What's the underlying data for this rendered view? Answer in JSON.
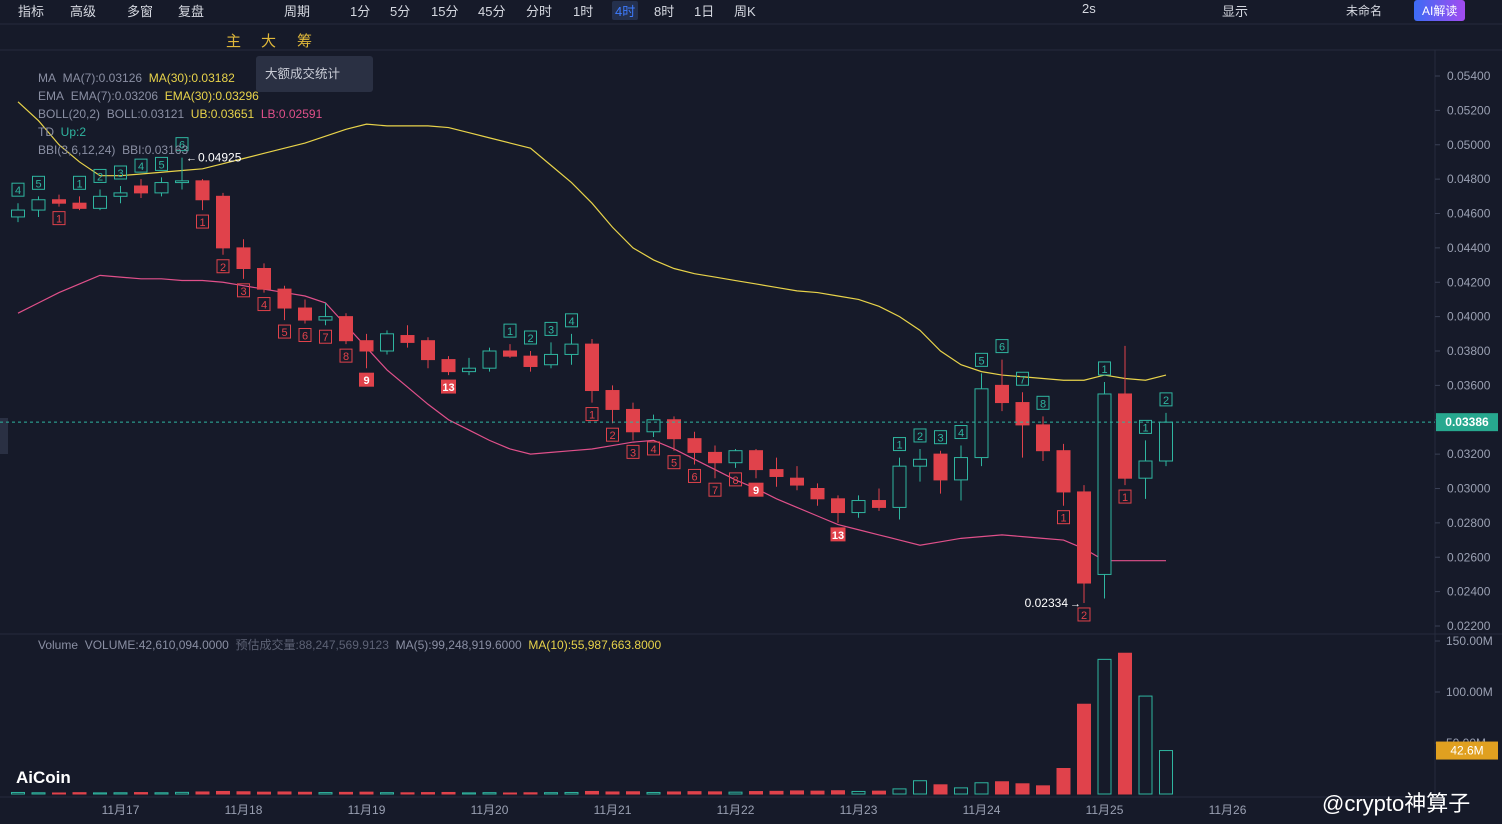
{
  "toolbar": {
    "left": [
      "指标",
      "高级",
      "多窗",
      "复盘"
    ],
    "period": "周期",
    "intervals": [
      "1分",
      "5分",
      "15分",
      "45分",
      "分时",
      "1时",
      "4时",
      "8时",
      "1日",
      "周K"
    ],
    "active_interval": "4时",
    "refresh": "2s",
    "display": "显示",
    "layout_name": "未命名",
    "ai": "AI解读",
    "chips": [
      "主",
      "大",
      "筹"
    ]
  },
  "tooltip": "大额成交统计",
  "legend": {
    "ma": [
      "MA",
      "MA(7):0.03126",
      "MA(30):0.03182"
    ],
    "ema": [
      "EMA",
      "EMA(7):0.03206",
      "EMA(30):0.03296"
    ],
    "boll": [
      "BOLL(20,2)",
      "BOLL:0.03121",
      "UB:0.03651",
      "LB:0.02591"
    ],
    "td": [
      "TD",
      "Up:2"
    ],
    "bbi": [
      "BBI(3,6,12,24)",
      "BBI:0.03163"
    ],
    "volume": [
      "Volume",
      "VOLUME:42,610,094.0000",
      "预估成交量:88,247,569.9123",
      "MA(5):99,248,919.6000",
      "MA(10):55,987,663.8000"
    ]
  },
  "watermark": {
    "logo": "AiCoin",
    "author": "@crypto神算子"
  },
  "chart_data": {
    "type": "candlestick",
    "dates": [
      "11月17",
      "11月18",
      "11月19",
      "11月20",
      "11月21",
      "11月22",
      "11月23",
      "11月24",
      "11月25",
      "11月26"
    ],
    "open": [
      0.0458,
      0.0462,
      0.0468,
      0.0466,
      0.0463,
      0.047,
      0.0476,
      0.0472,
      0.0478,
      0.0479,
      0.047,
      0.044,
      0.0428,
      0.0416,
      0.0405,
      0.0398,
      0.04,
      0.0386,
      0.038,
      0.0389,
      0.0386,
      0.0375,
      0.0368,
      0.037,
      0.038,
      0.0377,
      0.0372,
      0.0378,
      0.0384,
      0.0357,
      0.0346,
      0.0333,
      0.034,
      0.0329,
      0.0321,
      0.0315,
      0.0322,
      0.0311,
      0.0306,
      0.03,
      0.0294,
      0.0286,
      0.0293,
      0.0289,
      0.0313,
      0.032,
      0.0305,
      0.0318,
      0.036,
      0.035,
      0.0337,
      0.0322,
      0.0298,
      0.025,
      0.0355,
      0.0306,
      0.0316
    ],
    "high": [
      0.0466,
      0.047,
      0.0471,
      0.047,
      0.0474,
      0.0476,
      0.048,
      0.0481,
      0.04925,
      0.048,
      0.0472,
      0.0445,
      0.0431,
      0.0418,
      0.041,
      0.0408,
      0.0402,
      0.039,
      0.0392,
      0.0395,
      0.0388,
      0.0377,
      0.0376,
      0.0382,
      0.0384,
      0.038,
      0.0385,
      0.039,
      0.0387,
      0.036,
      0.035,
      0.0343,
      0.0342,
      0.0333,
      0.0325,
      0.0323,
      0.0323,
      0.0318,
      0.0313,
      0.0303,
      0.0296,
      0.0296,
      0.03,
      0.0318,
      0.0323,
      0.0322,
      0.0325,
      0.0367,
      0.0375,
      0.0356,
      0.0342,
      0.0326,
      0.0302,
      0.0362,
      0.0383,
      0.0328,
      0.0344
    ],
    "low": [
      0.0455,
      0.0458,
      0.0464,
      0.0462,
      0.0462,
      0.0466,
      0.0469,
      0.047,
      0.0474,
      0.0462,
      0.0436,
      0.0422,
      0.0414,
      0.0398,
      0.0396,
      0.0395,
      0.0384,
      0.037,
      0.0378,
      0.0382,
      0.037,
      0.0366,
      0.0366,
      0.0368,
      0.0376,
      0.0368,
      0.037,
      0.0372,
      0.035,
      0.0338,
      0.0328,
      0.033,
      0.0322,
      0.0314,
      0.0306,
      0.0312,
      0.0306,
      0.0301,
      0.0299,
      0.029,
      0.028,
      0.0283,
      0.0287,
      0.0282,
      0.0304,
      0.0297,
      0.0293,
      0.0313,
      0.0345,
      0.0318,
      0.0316,
      0.029,
      0.02334,
      0.0236,
      0.0302,
      0.0294,
      0.0313
    ],
    "close": [
      0.0462,
      0.0468,
      0.0466,
      0.0463,
      0.047,
      0.0472,
      0.0472,
      0.0478,
      0.0479,
      0.0468,
      0.044,
      0.0428,
      0.0416,
      0.0405,
      0.0398,
      0.04,
      0.0386,
      0.038,
      0.039,
      0.0385,
      0.0375,
      0.0368,
      0.037,
      0.038,
      0.0377,
      0.0371,
      0.0378,
      0.0384,
      0.0357,
      0.0346,
      0.0333,
      0.034,
      0.0329,
      0.0321,
      0.0315,
      0.0322,
      0.0311,
      0.0307,
      0.0302,
      0.0294,
      0.0286,
      0.0293,
      0.0289,
      0.0313,
      0.0317,
      0.0305,
      0.0318,
      0.0358,
      0.035,
      0.0337,
      0.0322,
      0.0298,
      0.0245,
      0.0355,
      0.0306,
      0.0316,
      0.03386
    ],
    "volume": [
      1.5,
      1.2,
      1.0,
      1.3,
      1.1,
      1.2,
      1.4,
      1.2,
      1.6,
      2.0,
      2.5,
      2.2,
      1.8,
      2.0,
      1.7,
      1.4,
      1.6,
      1.8,
      1.3,
      1.2,
      1.4,
      1.5,
      1.1,
      1.3,
      1.0,
      1.2,
      1.3,
      1.5,
      2.5,
      2.0,
      2.2,
      1.5,
      2.0,
      2.3,
      2.1,
      1.8,
      2.4,
      2.6,
      3.0,
      2.8,
      3.2,
      2.5,
      2.8,
      5.0,
      13.0,
      9.0,
      6.0,
      11.0,
      12.0,
      10.0,
      8.0,
      25.0,
      88.0,
      132.0,
      138.0,
      96.0,
      42.6
    ],
    "lines": [
      {
        "name": "UB",
        "color": "#e8d34a",
        "values": [
          0.0525,
          0.0514,
          0.05,
          0.049,
          0.0482,
          0.0482,
          0.0483,
          0.0484,
          0.0485,
          0.0486,
          0.0489,
          0.0492,
          0.0495,
          0.0498,
          0.0501,
          0.0505,
          0.0509,
          0.0512,
          0.0511,
          0.0511,
          0.0511,
          0.051,
          0.0507,
          0.0504,
          0.0501,
          0.0498,
          0.0488,
          0.0478,
          0.0466,
          0.0452,
          0.044,
          0.0433,
          0.0428,
          0.0425,
          0.0423,
          0.0421,
          0.0419,
          0.0417,
          0.0415,
          0.0414,
          0.0412,
          0.041,
          0.0406,
          0.04,
          0.0392,
          0.038,
          0.0372,
          0.0368,
          0.0366,
          0.0365,
          0.0364,
          0.0363,
          0.0363,
          0.0366,
          0.0364,
          0.0363,
          0.0366
        ]
      },
      {
        "name": "LB",
        "color": "#e0508a",
        "values": [
          0.0402,
          0.0408,
          0.0414,
          0.0419,
          0.0424,
          0.0423,
          0.0422,
          0.0422,
          0.0421,
          0.0421,
          0.042,
          0.0418,
          0.0416,
          0.0414,
          0.0412,
          0.0408,
          0.0395,
          0.0382,
          0.0369,
          0.0359,
          0.0349,
          0.034,
          0.0334,
          0.0328,
          0.0323,
          0.032,
          0.0321,
          0.0322,
          0.0323,
          0.0325,
          0.0327,
          0.0328,
          0.0323,
          0.0317,
          0.0311,
          0.0305,
          0.03,
          0.0294,
          0.0289,
          0.0284,
          0.0279,
          0.0276,
          0.0273,
          0.027,
          0.0267,
          0.0269,
          0.0271,
          0.0272,
          0.0273,
          0.0272,
          0.0271,
          0.027,
          0.0265,
          0.0258,
          0.0258,
          0.0258,
          0.0258
        ]
      }
    ],
    "td_above": [
      "4",
      "5",
      null,
      "1",
      "2",
      "3",
      "4",
      "5",
      "6",
      null,
      null,
      null,
      null,
      null,
      null,
      null,
      null,
      null,
      null,
      null,
      null,
      null,
      null,
      null,
      "1",
      "2",
      "3",
      "4",
      null,
      null,
      null,
      null,
      null,
      null,
      null,
      null,
      null,
      null,
      null,
      null,
      null,
      null,
      null,
      "1",
      "2",
      "3",
      "4",
      "5",
      "6",
      "7",
      "8",
      null,
      null,
      "1",
      null,
      "1",
      "2"
    ],
    "td_below": [
      null,
      null,
      "1",
      null,
      null,
      null,
      null,
      null,
      null,
      "1",
      "2",
      "3",
      "4",
      "5",
      "6",
      "7",
      "8",
      "9",
      null,
      null,
      null,
      "13",
      null,
      null,
      null,
      null,
      null,
      null,
      "1",
      "2",
      "3",
      "4",
      "5",
      "6",
      "7",
      "8",
      "9",
      null,
      null,
      null,
      "13",
      null,
      null,
      null,
      null,
      null,
      null,
      null,
      null,
      null,
      null,
      "1",
      "2",
      null,
      "1",
      null,
      null
    ],
    "high_label": 0.04925,
    "low_label": 0.02334,
    "ylim": [
      0.022,
      0.054
    ],
    "yticks": [
      {
        "value": 0.054,
        "label": "0.05400"
      },
      {
        "value": 0.052,
        "label": "0.05200"
      },
      {
        "value": 0.05,
        "label": "0.05000"
      },
      {
        "value": 0.048,
        "label": "0.04800"
      },
      {
        "value": 0.046,
        "label": "0.04600"
      },
      {
        "value": 0.044,
        "label": "0.04400"
      },
      {
        "value": 0.042,
        "label": "0.04200"
      },
      {
        "value": 0.04,
        "label": "0.04000"
      },
      {
        "value": 0.038,
        "label": "0.03800"
      },
      {
        "value": 0.036,
        "label": "0.03600"
      },
      {
        "value": 0.034,
        "label": "0.03400"
      },
      {
        "value": 0.032,
        "label": "0.03200"
      },
      {
        "value": 0.03,
        "label": "0.03000"
      },
      {
        "value": 0.028,
        "label": "0.02800"
      },
      {
        "value": 0.026,
        "label": "0.02600"
      },
      {
        "value": 0.024,
        "label": "0.02400"
      },
      {
        "value": 0.022,
        "label": "0.02200"
      }
    ],
    "last_price": {
      "value": 0.03386,
      "label": "0.03386"
    },
    "vlim": [
      0,
      150
    ],
    "vticks": [
      {
        "value": 150,
        "label": "150.00M"
      },
      {
        "value": 100,
        "label": "100.00M"
      },
      {
        "value": 50,
        "label": "50.00M"
      }
    ],
    "last_volume": {
      "value": 42.6,
      "label": "42.6M"
    },
    "up_color": "#2fb5a0",
    "down_color": "#e0424b"
  }
}
